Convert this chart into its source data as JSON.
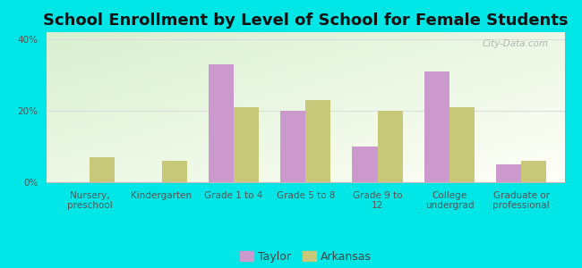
{
  "title": "School Enrollment by Level of School for Female Students",
  "categories": [
    "Nursery,\npreschool",
    "Kindergarten",
    "Grade 1 to 4",
    "Grade 5 to 8",
    "Grade 9 to\n12",
    "College\nundergrad",
    "Graduate or\nprofessional"
  ],
  "taylor_values": [
    0,
    0,
    33,
    20,
    10,
    31,
    5
  ],
  "arkansas_values": [
    7,
    6,
    21,
    23,
    20,
    21,
    6
  ],
  "taylor_color": "#cc99cc",
  "arkansas_color": "#c8c87a",
  "background_color": "#00e5e5",
  "ylabel_ticks": [
    "0%",
    "20%",
    "40%"
  ],
  "yticks": [
    0,
    20,
    40
  ],
  "ylim": [
    0,
    42
  ],
  "title_fontsize": 13,
  "tick_fontsize": 7.5,
  "legend_fontsize": 9,
  "bar_width": 0.35,
  "watermark_text": "City-Data.com"
}
